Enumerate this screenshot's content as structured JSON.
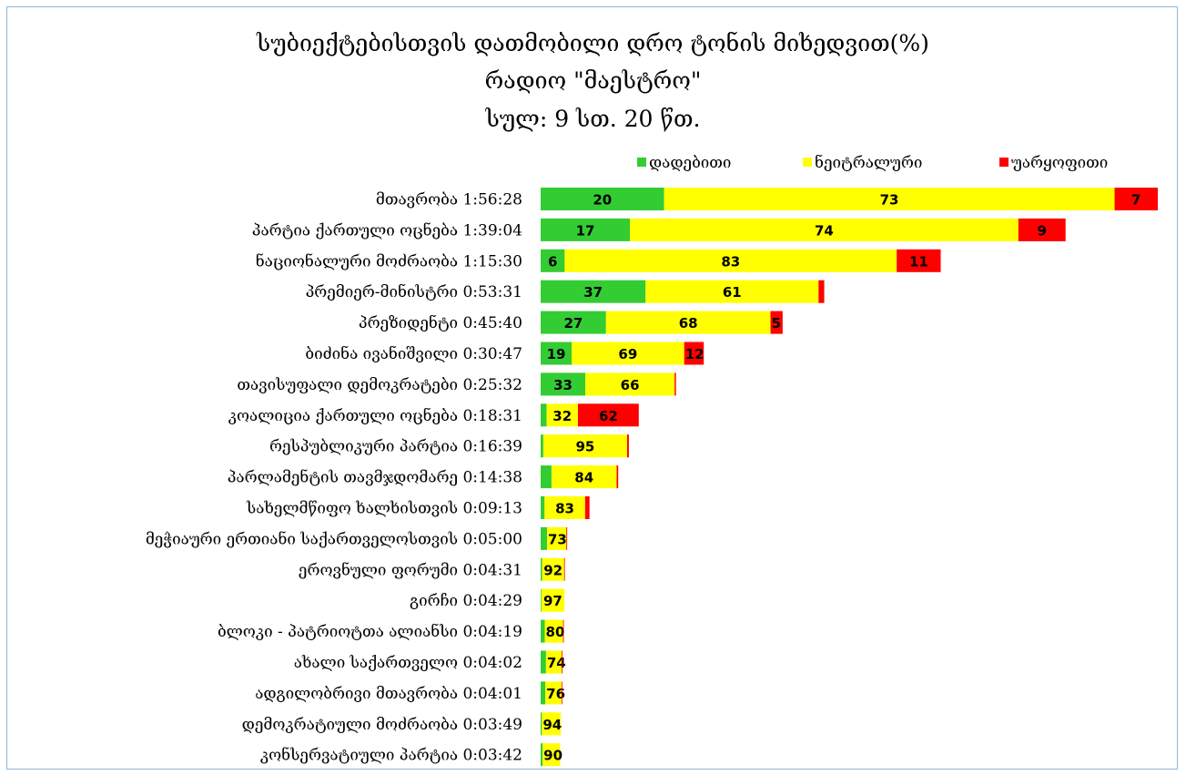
{
  "chart_data": {
    "type": "bar",
    "orientation": "horizontal",
    "stacked": true,
    "title_lines": [
      "სუბიექტებისთვის დათმობილი დრო ტონის მიხედვით(%)",
      "რადიო \"მაესტრო\"",
      "სულ: 9 სთ. 20 წთ."
    ],
    "legend_position": "top-right",
    "grid": false,
    "categories": [
      "მთავრობა 1:56:28",
      "პარტია ქართული ოცნება 1:39:04",
      "ნაციონალური მოძრაობა 1:15:30",
      "პრემიერ-მინისტრი 0:53:31",
      "პრეზიდენტი 0:45:40",
      "ბიძინა ივანიშვილი 0:30:47",
      "თავისუფალი დემოკრატები 0:25:32",
      "კოალიცია ქართული ოცნება 0:18:31",
      "რესპუბლიკური პარტია 0:16:39",
      "პარლამენტის თავმჯდომარე 0:14:38",
      "სახელმწიფო ხალხისთვის 0:09:13",
      "მეჭიაური ერთიანი საქართველოსთვის 0:05:00",
      "ეროვნული ფორუმი 0:04:31",
      "გირჩი 0:04:29",
      "ბლოკი - პატრიოტთა ალიანსი  0:04:19",
      "ახალი საქართველო 0:04:02",
      "ადგილობრივი მთავრობა 0:04:01",
      "დემოკრატიული მოძრაობა 0:03:49",
      "კონსერვატიული პარტია 0:03:42"
    ],
    "total_seconds": [
      6988,
      5944,
      4530,
      3211,
      2740,
      1847,
      1532,
      1111,
      999,
      878,
      553,
      300,
      271,
      269,
      259,
      242,
      241,
      229,
      222
    ],
    "series": [
      {
        "name": "დადებითი",
        "color": "#33cc33",
        "values": [
          20,
          17,
          6,
          37,
          27,
          19,
          33,
          6,
          3,
          14,
          8,
          24,
          6,
          3,
          18,
          25,
          22,
          6,
          10
        ],
        "labels": [
          "20",
          "17",
          "6",
          "37",
          "27",
          "19",
          "33",
          "",
          "",
          "",
          "",
          "",
          "",
          "",
          "",
          "",
          "",
          "",
          ""
        ]
      },
      {
        "name": "ნეიტრალური",
        "color": "#ffff00",
        "values": [
          73,
          74,
          83,
          61,
          68,
          69,
          66,
          32,
          95,
          84,
          83,
          73,
          92,
          97,
          80,
          74,
          76,
          94,
          90
        ],
        "labels": [
          "73",
          "74",
          "83",
          "61",
          "68",
          "69",
          "66",
          "32",
          "95",
          "84",
          "83",
          "73",
          "92",
          "97",
          "80",
          "74",
          "76",
          "94",
          "90"
        ]
      },
      {
        "name": "უარყოფითი",
        "color": "#ff0000",
        "values": [
          7,
          9,
          11,
          2,
          5,
          12,
          1,
          62,
          2,
          2,
          9,
          3,
          2,
          0,
          2,
          1,
          2,
          0,
          0
        ],
        "labels": [
          "7",
          "9",
          "11",
          "",
          "5",
          "12",
          "",
          "62",
          "",
          "",
          "",
          "",
          "",
          "",
          "",
          "",
          "",
          "",
          ""
        ]
      }
    ]
  }
}
